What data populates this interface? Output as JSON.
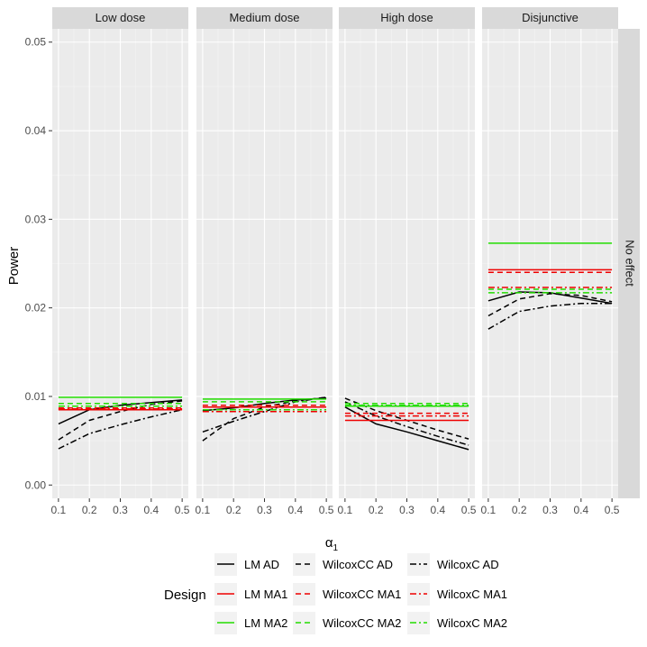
{
  "chart_data": {
    "type": "line",
    "ylabel": "Power",
    "xlabel_base": "α",
    "xlabel_sub": "1",
    "row_strip": "No effect",
    "ylim": [
      -0.0015,
      0.0515
    ],
    "xlim": [
      0.08,
      0.52
    ],
    "x": [
      0.1,
      0.2,
      0.3,
      0.4,
      0.5
    ],
    "y_ticks": [
      0.0,
      0.01,
      0.02,
      0.03,
      0.04,
      0.05
    ],
    "y_tick_labels": [
      "0.00",
      "0.01",
      "0.02",
      "0.03",
      "0.04",
      "0.05"
    ],
    "x_ticks": [
      0.1,
      0.2,
      0.3,
      0.4,
      0.5
    ],
    "x_tick_labels": [
      "0.1",
      "0.2",
      "0.3",
      "0.4",
      "0.5"
    ],
    "legend": {
      "title": "Design",
      "columns": [
        [
          "LM AD",
          "LM MA1",
          "LM MA2"
        ],
        [
          "WilcoxCC AD",
          "WilcoxCC MA1",
          "WilcoxCC MA2"
        ],
        [
          "WilcoxC AD",
          "WilcoxC MA1",
          "WilcoxC MA2"
        ]
      ]
    },
    "series_styles": [
      {
        "name": "LM AD",
        "color": "#000000",
        "dash": "none"
      },
      {
        "name": "LM MA1",
        "color": "#ee0000",
        "dash": "none"
      },
      {
        "name": "LM MA2",
        "color": "#22dd00",
        "dash": "none"
      },
      {
        "name": "WilcoxCC AD",
        "color": "#000000",
        "dash": "6,4"
      },
      {
        "name": "WilcoxCC MA1",
        "color": "#ee0000",
        "dash": "6,4"
      },
      {
        "name": "WilcoxCC MA2",
        "color": "#22dd00",
        "dash": "6,4"
      },
      {
        "name": "WilcoxC AD",
        "color": "#000000",
        "dash": "7,3,2,3"
      },
      {
        "name": "WilcoxC MA1",
        "color": "#ee0000",
        "dash": "7,3,2,3"
      },
      {
        "name": "WilcoxC MA2",
        "color": "#22dd00",
        "dash": "7,3,2,3"
      }
    ],
    "panels": [
      {
        "title": "Low dose",
        "series": [
          {
            "name": "LM AD",
            "values": [
              0.0069,
              0.0085,
              0.009,
              0.0093,
              0.0096
            ]
          },
          {
            "name": "WilcoxCC AD",
            "values": [
              0.0051,
              0.0073,
              0.0083,
              0.0091,
              0.0095
            ]
          },
          {
            "name": "WilcoxC AD",
            "values": [
              0.0041,
              0.0058,
              0.0068,
              0.0077,
              0.0085
            ]
          },
          {
            "name": "LM MA1",
            "values": [
              0.0085,
              0.0085,
              0.0085,
              0.0085,
              0.0085
            ]
          },
          {
            "name": "WilcoxCC MA1",
            "values": [
              0.0087,
              0.0087,
              0.0087,
              0.0087,
              0.0087
            ]
          },
          {
            "name": "WilcoxC MA1",
            "values": [
              0.0086,
              0.0086,
              0.0086,
              0.0086,
              0.0086
            ]
          },
          {
            "name": "LM MA2",
            "values": [
              0.0099,
              0.0099,
              0.0099,
              0.0099,
              0.0099
            ]
          },
          {
            "name": "WilcoxCC MA2",
            "values": [
              0.0092,
              0.0092,
              0.0092,
              0.0092,
              0.0092
            ]
          },
          {
            "name": "WilcoxC MA2",
            "values": [
              0.0089,
              0.0089,
              0.0089,
              0.0089,
              0.0089
            ]
          }
        ]
      },
      {
        "title": "Medium dose",
        "series": [
          {
            "name": "LM AD",
            "values": [
              0.0084,
              0.0087,
              0.0092,
              0.0096,
              0.0098
            ]
          },
          {
            "name": "WilcoxCC AD",
            "values": [
              0.005,
              0.0075,
              0.0088,
              0.0095,
              0.0099
            ]
          },
          {
            "name": "WilcoxC AD",
            "values": [
              0.006,
              0.0072,
              0.0083,
              0.0094,
              0.0099
            ]
          },
          {
            "name": "LM MA1",
            "values": [
              0.0088,
              0.0088,
              0.0088,
              0.0088,
              0.0088
            ]
          },
          {
            "name": "WilcoxCC MA1",
            "values": [
              0.009,
              0.009,
              0.009,
              0.009,
              0.009
            ]
          },
          {
            "name": "WilcoxC MA1",
            "values": [
              0.0083,
              0.0083,
              0.0083,
              0.0083,
              0.0083
            ]
          },
          {
            "name": "LM MA2",
            "values": [
              0.0097,
              0.0097,
              0.0097,
              0.0097,
              0.0097
            ]
          },
          {
            "name": "WilcoxCC MA2",
            "values": [
              0.0094,
              0.0094,
              0.0094,
              0.0094,
              0.0094
            ]
          },
          {
            "name": "WilcoxC MA2",
            "values": [
              0.0085,
              0.0085,
              0.0085,
              0.0085,
              0.0085
            ]
          }
        ]
      },
      {
        "title": "High dose",
        "series": [
          {
            "name": "LM AD",
            "values": [
              0.0088,
              0.0069,
              0.006,
              0.005,
              0.004
            ]
          },
          {
            "name": "WilcoxCC AD",
            "values": [
              0.0098,
              0.0084,
              0.0073,
              0.0062,
              0.0052
            ]
          },
          {
            "name": "WilcoxC AD",
            "values": [
              0.0094,
              0.0078,
              0.0066,
              0.0055,
              0.0045
            ]
          },
          {
            "name": "LM MA1",
            "values": [
              0.0073,
              0.0073,
              0.0073,
              0.0073,
              0.0073
            ]
          },
          {
            "name": "WilcoxCC MA1",
            "values": [
              0.0081,
              0.0081,
              0.0081,
              0.0081,
              0.0081
            ]
          },
          {
            "name": "WilcoxC MA1",
            "values": [
              0.0078,
              0.0078,
              0.0078,
              0.0078,
              0.0078
            ]
          },
          {
            "name": "LM MA2",
            "values": [
              0.0089,
              0.0089,
              0.0089,
              0.0089,
              0.0089
            ]
          },
          {
            "name": "WilcoxCC MA2",
            "values": [
              0.0092,
              0.0092,
              0.0092,
              0.0092,
              0.0092
            ]
          },
          {
            "name": "WilcoxC MA2",
            "values": [
              0.009,
              0.009,
              0.009,
              0.009,
              0.009
            ]
          }
        ]
      },
      {
        "title": "Disjunctive",
        "series": [
          {
            "name": "LM AD",
            "values": [
              0.0208,
              0.0218,
              0.0217,
              0.0211,
              0.0205
            ]
          },
          {
            "name": "WilcoxCC AD",
            "values": [
              0.0191,
              0.021,
              0.0216,
              0.0214,
              0.0207
            ]
          },
          {
            "name": "WilcoxC AD",
            "values": [
              0.0176,
              0.0196,
              0.0202,
              0.0205,
              0.0205
            ]
          },
          {
            "name": "LM MA1",
            "values": [
              0.0243,
              0.0243,
              0.0243,
              0.0243,
              0.0243
            ]
          },
          {
            "name": "WilcoxCC MA1",
            "values": [
              0.024,
              0.024,
              0.024,
              0.024,
              0.024
            ]
          },
          {
            "name": "WilcoxC MA1",
            "values": [
              0.0223,
              0.0223,
              0.0223,
              0.0223,
              0.0223
            ]
          },
          {
            "name": "LM MA2",
            "values": [
              0.0273,
              0.0273,
              0.0273,
              0.0273,
              0.0273
            ]
          },
          {
            "name": "WilcoxCC MA2",
            "values": [
              0.0221,
              0.0221,
              0.0221,
              0.0221,
              0.0221
            ]
          },
          {
            "name": "WilcoxC MA2",
            "values": [
              0.0217,
              0.0217,
              0.0217,
              0.0217,
              0.0217
            ]
          }
        ]
      }
    ]
  }
}
